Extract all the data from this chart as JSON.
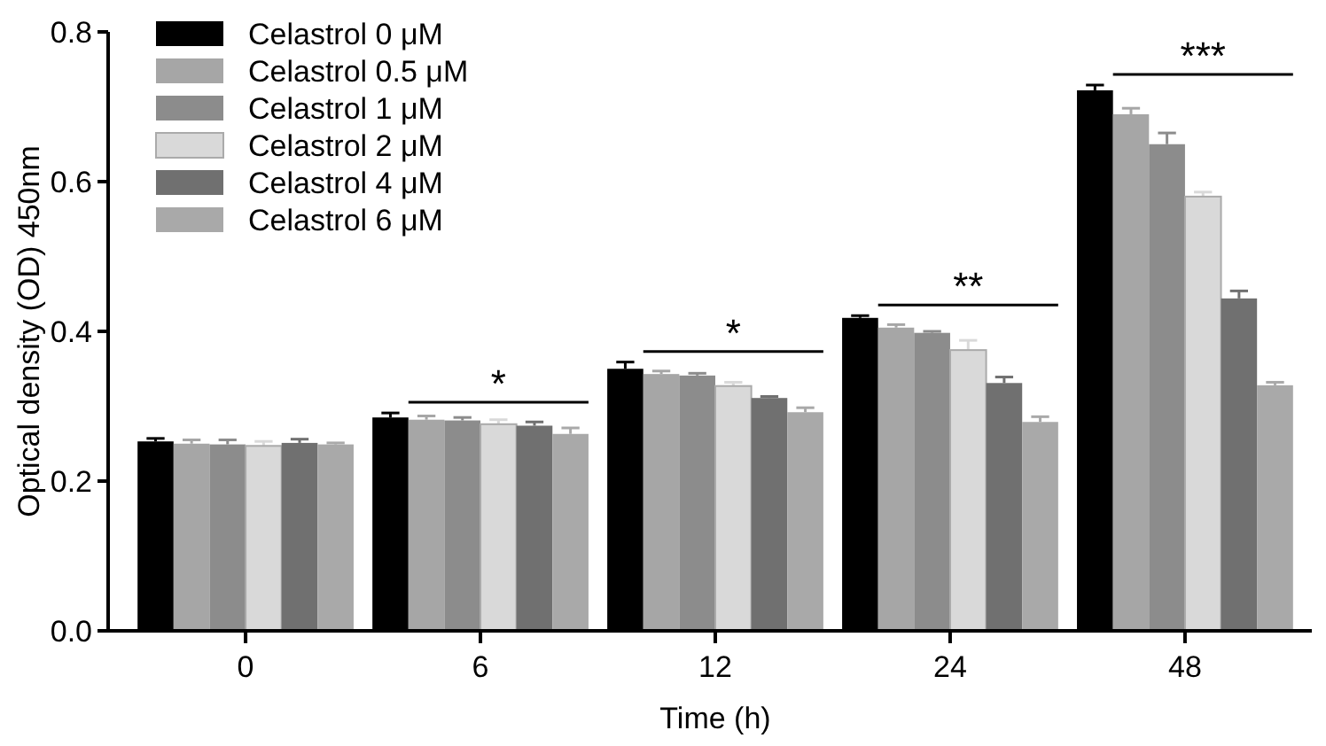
{
  "chart_data": {
    "type": "bar",
    "xlabel": "Time (h)",
    "ylabel": "Optical density (OD) 450nm",
    "categories": [
      "0",
      "6",
      "12",
      "24",
      "48"
    ],
    "ylim": [
      0,
      0.8
    ],
    "yticks": [
      {
        "value": 0,
        "label": "0.0"
      },
      {
        "value": 0.2,
        "label": "0.2"
      },
      {
        "value": 0.4,
        "label": "0.4"
      },
      {
        "value": 0.6,
        "label": "0.6"
      },
      {
        "value": 0.8,
        "label": "0.8"
      }
    ],
    "legend": "top left",
    "grid": false,
    "series": [
      {
        "name": "Celastrol 0 μM",
        "color": "#000000",
        "values": [
          0.253,
          0.285,
          0.35,
          0.418,
          0.722
        ],
        "errors": [
          0.004,
          0.006,
          0.009,
          0.003,
          0.007
        ]
      },
      {
        "name": "Celastrol 0.5 μM",
        "color": "#a6a6a6",
        "values": [
          0.25,
          0.282,
          0.343,
          0.405,
          0.69
        ],
        "errors": [
          0.005,
          0.005,
          0.004,
          0.004,
          0.008
        ]
      },
      {
        "name": "Celastrol 1 μM",
        "color": "#8c8c8c",
        "values": [
          0.249,
          0.281,
          0.341,
          0.398,
          0.65
        ],
        "errors": [
          0.006,
          0.004,
          0.003,
          0.002,
          0.015
        ]
      },
      {
        "name": "Celastrol 2 μM",
        "color": "#d9d9d9",
        "values": [
          0.247,
          0.276,
          0.327,
          0.375,
          0.58
        ],
        "errors": [
          0.006,
          0.006,
          0.005,
          0.013,
          0.006
        ]
      },
      {
        "name": "Celastrol 4 μM",
        "color": "#707070",
        "values": [
          0.251,
          0.274,
          0.311,
          0.331,
          0.444
        ],
        "errors": [
          0.005,
          0.005,
          0.002,
          0.008,
          0.01
        ]
      },
      {
        "name": "Celastrol 6 μM",
        "color": "#a9a9a9",
        "values": [
          0.249,
          0.263,
          0.292,
          0.279,
          0.328
        ],
        "errors": [
          0.002,
          0.008,
          0.006,
          0.007,
          0.004
        ]
      }
    ],
    "annotations": [
      "*",
      "*",
      "**",
      "***"
    ]
  }
}
